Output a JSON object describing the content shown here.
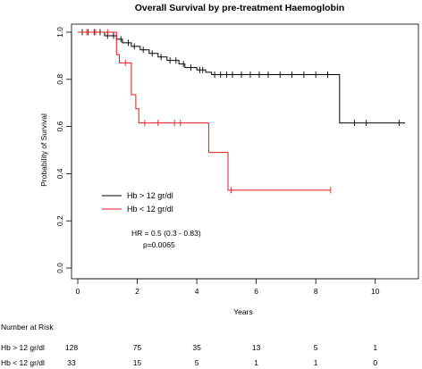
{
  "chart_data": {
    "type": "line",
    "title": "Overall Survival by pre-treatment Haemoglobin",
    "xlabel": "Years",
    "ylabel": "Probability of Survival",
    "xlim": [
      0,
      11
    ],
    "ylim": [
      0,
      1
    ],
    "x_ticks": [
      "0",
      "2",
      "4",
      "6",
      "8",
      "10"
    ],
    "y_ticks": [
      "0.0",
      "0.2",
      "0.4",
      "0.6",
      "0.8",
      "1.0"
    ],
    "grid": false,
    "legend": {
      "position": "left-middle",
      "entries": [
        "Hb > 12 gr/dl",
        "Hb < 12 gr/dl"
      ]
    },
    "annotations": [
      "HR = 0.5 (0.3 - 0.83)",
      "p=0.0065"
    ],
    "series": [
      {
        "name": "Hb > 12 gr/dl",
        "color": "#000000",
        "step_x": [
          0,
          0.9,
          1.3,
          1.5,
          1.8,
          2.1,
          2.4,
          2.7,
          3.0,
          3.4,
          3.6,
          4.0,
          4.3,
          4.5,
          8.8,
          11.0
        ],
        "step_y": [
          1.0,
          0.985,
          0.97,
          0.955,
          0.94,
          0.925,
          0.91,
          0.895,
          0.88,
          0.865,
          0.85,
          0.84,
          0.83,
          0.82,
          0.615,
          0.615
        ],
        "censor_x": [
          0.15,
          0.35,
          0.55,
          0.75,
          1.0,
          1.2,
          1.45,
          1.7,
          1.9,
          2.2,
          2.5,
          2.8,
          3.1,
          3.3,
          3.55,
          3.8,
          4.1,
          4.2,
          4.6,
          4.8,
          5.0,
          5.2,
          5.5,
          5.8,
          6.1,
          6.4,
          6.8,
          7.2,
          7.6,
          8.0,
          8.4,
          9.3,
          9.7,
          10.8
        ]
      },
      {
        "name": "Hb < 12 gr/dl",
        "color": "#e41a1c",
        "step_x": [
          0,
          1.3,
          1.4,
          1.8,
          1.95,
          2.05,
          4.4,
          5.05,
          8.5
        ],
        "step_y": [
          1.0,
          0.905,
          0.87,
          0.735,
          0.675,
          0.615,
          0.49,
          0.33,
          0.33
        ],
        "censor_x": [
          0.3,
          0.6,
          1.0,
          1.6,
          2.25,
          2.7,
          3.25,
          3.45,
          5.15,
          8.5
        ]
      }
    ]
  },
  "risk_table": {
    "title": "Number at Risk",
    "times": [
      0,
      2,
      4,
      6,
      8,
      10
    ],
    "rows": [
      {
        "label": "Hb > 12 gr/dl",
        "counts": [
          "128",
          "75",
          "35",
          "13",
          "5",
          "1"
        ]
      },
      {
        "label": "Hb < 12 gr/dl",
        "counts": [
          "33",
          "15",
          "5",
          "1",
          "1",
          "0"
        ]
      }
    ]
  }
}
